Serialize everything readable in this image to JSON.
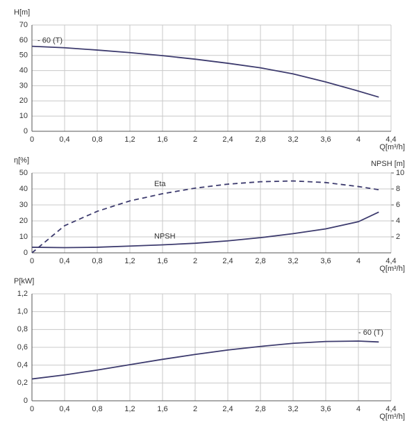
{
  "chart_data": [
    {
      "type": "line",
      "y_label": "H[m]",
      "x_label": "Q[m³/h]",
      "grid": true,
      "x": [
        0,
        0.4,
        0.8,
        1.2,
        1.6,
        2.0,
        2.4,
        2.8,
        3.2,
        3.6,
        4.0,
        4.25
      ],
      "xlim": [
        0,
        4.4
      ],
      "xticks": [
        0,
        {
          "value": 0.4,
          "label": "0,4"
        },
        {
          "value": 0.8,
          "label": "0,8"
        },
        {
          "value": 1.2,
          "label": "1,2"
        },
        {
          "value": 1.6,
          "label": "1,6"
        },
        2,
        {
          "value": 2.4,
          "label": "2,4"
        },
        {
          "value": 2.8,
          "label": "2,8"
        },
        {
          "value": 3.2,
          "label": "3,2"
        },
        {
          "value": 3.6,
          "label": "3,6"
        },
        4,
        {
          "value": 4.4,
          "label": "4,4"
        }
      ],
      "ylim": [
        0,
        70
      ],
      "yticks": [
        0,
        10,
        20,
        30,
        40,
        50,
        60,
        70
      ],
      "series": [
        {
          "name": "- 60 (T)",
          "color": "#3d3b6e",
          "values": [
            56,
            55,
            53.5,
            51.8,
            49.8,
            47.5,
            44.8,
            41.8,
            37.8,
            32.5,
            26.5,
            22.5
          ]
        }
      ]
    },
    {
      "type": "line",
      "y_label": "η[%]",
      "y2_label": "NPSH [m]",
      "x_label": "Q[m³/h]",
      "grid": true,
      "x": [
        0,
        0.4,
        0.8,
        1.2,
        1.6,
        2.0,
        2.4,
        2.8,
        3.2,
        3.6,
        4.0,
        4.25
      ],
      "xlim": [
        0,
        4.4
      ],
      "xticks": [
        0,
        {
          "value": 0.4,
          "label": "0,4"
        },
        {
          "value": 0.8,
          "label": "0,8"
        },
        {
          "value": 1.2,
          "label": "1,2"
        },
        {
          "value": 1.6,
          "label": "1,6"
        },
        2,
        {
          "value": 2.4,
          "label": "2,4"
        },
        {
          "value": 2.8,
          "label": "2,8"
        },
        {
          "value": 3.2,
          "label": "3,2"
        },
        {
          "value": 3.6,
          "label": "3,6"
        },
        4,
        {
          "value": 4.4,
          "label": "4,4"
        }
      ],
      "ylim": [
        0,
        50
      ],
      "yticks": [
        0,
        10,
        20,
        30,
        40,
        50
      ],
      "y2lim": [
        0,
        10
      ],
      "y2ticks": [
        2,
        4,
        6,
        8,
        10
      ],
      "series": [
        {
          "name": "Eta",
          "color": "#3d3b6e",
          "dashed": true,
          "values": [
            0,
            17,
            26,
            32.5,
            37,
            40.5,
            43,
            44.5,
            45,
            44,
            41.5,
            39.5
          ]
        },
        {
          "name": "NPSH",
          "color": "#3d3b6e",
          "axis": "y2",
          "values": [
            0.7,
            0.65,
            0.7,
            0.85,
            1.0,
            1.2,
            1.5,
            1.9,
            2.4,
            3.0,
            3.9,
            5.1
          ]
        }
      ]
    },
    {
      "type": "line",
      "y_label": "P[kW]",
      "x_label": "Q[m³/h]",
      "grid": true,
      "x": [
        0,
        0.4,
        0.8,
        1.2,
        1.6,
        2.0,
        2.4,
        2.8,
        3.2,
        3.6,
        4.0,
        4.25
      ],
      "xlim": [
        0,
        4.4
      ],
      "xticks": [
        0,
        {
          "value": 0.4,
          "label": "0,4"
        },
        {
          "value": 0.8,
          "label": "0,8"
        },
        {
          "value": 1.2,
          "label": "1,2"
        },
        {
          "value": 1.6,
          "label": "1,6"
        },
        2,
        {
          "value": 2.4,
          "label": "2,4"
        },
        {
          "value": 2.8,
          "label": "2,8"
        },
        {
          "value": 3.2,
          "label": "3,2"
        },
        {
          "value": 3.6,
          "label": "3,6"
        },
        4,
        {
          "value": 4.4,
          "label": "4,4"
        }
      ],
      "ylim": [
        0,
        1.2
      ],
      "yticks": [
        0,
        {
          "value": 0.2,
          "label": "0,2"
        },
        {
          "value": 0.4,
          "label": "0,4"
        },
        {
          "value": 0.6,
          "label": "0,6"
        },
        {
          "value": 0.8,
          "label": "0,8"
        },
        {
          "value": 1.0,
          "label": "1,0"
        },
        {
          "value": 1.2,
          "label": "1,2"
        }
      ],
      "series": [
        {
          "name": "- 60 (T)",
          "color": "#3d3b6e",
          "values": [
            0.245,
            0.29,
            0.345,
            0.405,
            0.465,
            0.52,
            0.57,
            0.61,
            0.645,
            0.665,
            0.67,
            0.66
          ]
        }
      ]
    }
  ]
}
